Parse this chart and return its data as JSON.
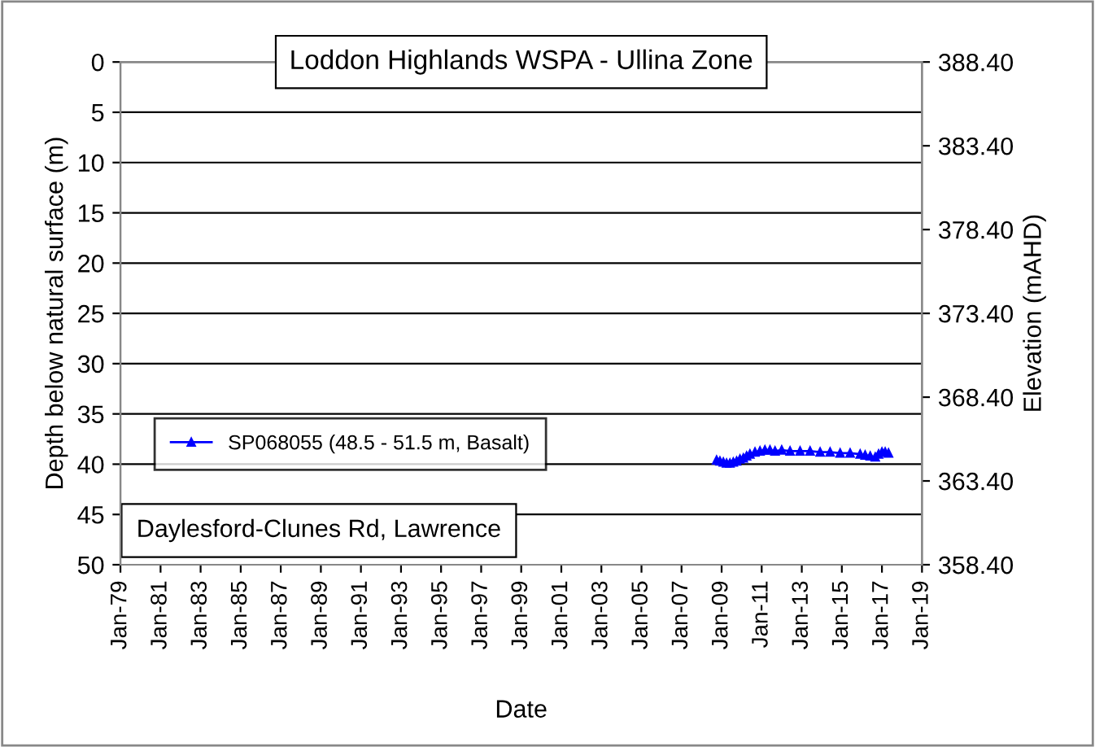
{
  "chart_data": {
    "type": "line",
    "title": "Loddon Highlands WSPA - Ullina Zone",
    "xlabel": "Date",
    "ylabel": "Depth below natural surface (m)",
    "y2label": "Elevation (mAHD)",
    "annotations": [
      "Daylesford-Clunes Rd, Lawrence"
    ],
    "x": [
      "2008-10",
      "2008-12",
      "2009-02",
      "2009-04",
      "2009-06",
      "2009-08",
      "2009-10",
      "2009-12",
      "2010-02",
      "2010-04",
      "2010-06",
      "2010-09",
      "2010-12",
      "2011-03",
      "2011-06",
      "2011-09",
      "2012-01",
      "2012-06",
      "2012-12",
      "2013-06",
      "2013-12",
      "2014-06",
      "2014-12",
      "2015-06",
      "2015-12",
      "2016-03",
      "2016-06",
      "2016-09",
      "2016-11",
      "2017-01",
      "2017-03",
      "2017-05"
    ],
    "series": [
      {
        "name": "SP068055 (48.5 - 51.5 m, Basalt)",
        "color": "#0000ff",
        "values": [
          39.6,
          39.7,
          39.8,
          39.9,
          39.9,
          39.8,
          39.7,
          39.5,
          39.4,
          39.2,
          39.0,
          38.8,
          38.7,
          38.6,
          38.6,
          38.7,
          38.6,
          38.7,
          38.7,
          38.7,
          38.8,
          38.8,
          38.9,
          38.9,
          39.0,
          39.1,
          39.2,
          39.3,
          39.0,
          38.8,
          38.8,
          38.9
        ]
      }
    ],
    "xlim": [
      "1979-01",
      "2019-01"
    ],
    "xticks": [
      {
        "value": "1979-01",
        "label": "Jan-79"
      },
      {
        "value": "1981-01",
        "label": "Jan-81"
      },
      {
        "value": "1983-01",
        "label": "Jan-83"
      },
      {
        "value": "1985-01",
        "label": "Jan-85"
      },
      {
        "value": "1987-01",
        "label": "Jan-87"
      },
      {
        "value": "1989-01",
        "label": "Jan-89"
      },
      {
        "value": "1991-01",
        "label": "Jan-91"
      },
      {
        "value": "1993-01",
        "label": "Jan-93"
      },
      {
        "value": "1995-01",
        "label": "Jan-95"
      },
      {
        "value": "1997-01",
        "label": "Jan-97"
      },
      {
        "value": "1999-01",
        "label": "Jan-99"
      },
      {
        "value": "2001-01",
        "label": "Jan-01"
      },
      {
        "value": "2003-01",
        "label": "Jan-03"
      },
      {
        "value": "2005-01",
        "label": "Jan-05"
      },
      {
        "value": "2007-01",
        "label": "Jan-07"
      },
      {
        "value": "2009-01",
        "label": "Jan-09"
      },
      {
        "value": "2011-01",
        "label": "Jan-11"
      },
      {
        "value": "2013-01",
        "label": "Jan-13"
      },
      {
        "value": "2015-01",
        "label": "Jan-15"
      },
      {
        "value": "2017-01",
        "label": "Jan-17"
      },
      {
        "value": "2019-01",
        "label": "Jan-19"
      }
    ],
    "ylim": [
      50,
      0
    ],
    "yticks": [
      0,
      5,
      10,
      15,
      20,
      25,
      30,
      35,
      40,
      45,
      50
    ],
    "y2lim": [
      358.4,
      388.4
    ],
    "y2ticks": [
      {
        "value": 388.4,
        "label": "388.40"
      },
      {
        "value": 383.4,
        "label": "383.40"
      },
      {
        "value": 378.4,
        "label": "378.40"
      },
      {
        "value": 373.4,
        "label": "373.40"
      },
      {
        "value": 368.4,
        "label": "368.40"
      },
      {
        "value": 363.4,
        "label": "363.40"
      },
      {
        "value": 358.4,
        "label": "358.40"
      }
    ],
    "grid": "y",
    "legend": "left",
    "marker": "triangle",
    "line_style": "solid"
  }
}
